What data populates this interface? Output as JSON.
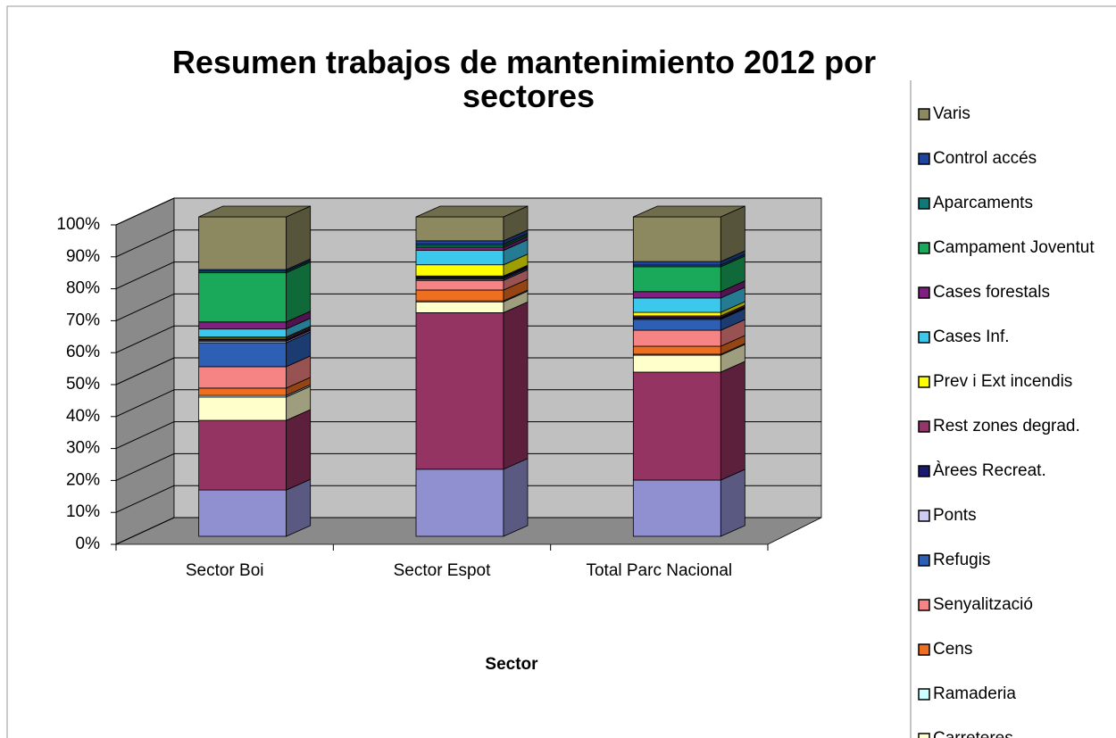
{
  "chart_data": {
    "type": "stacked_bar_3d",
    "title": "Resumen trabajos de mantenimiento 2012 por sectores",
    "x_label": "Sector",
    "categories": [
      "Sector Boi",
      "Sector Espot",
      "Total Parc Nacional"
    ],
    "ylim": [
      0,
      100
    ],
    "yticks": [
      {
        "value": 0,
        "label": "0%"
      },
      {
        "value": 10,
        "label": "10%"
      },
      {
        "value": 20,
        "label": "20%"
      },
      {
        "value": 30,
        "label": "30%"
      },
      {
        "value": 40,
        "label": "40%"
      },
      {
        "value": 50,
        "label": "50%"
      },
      {
        "value": 60,
        "label": "60%"
      },
      {
        "value": 70,
        "label": "70%"
      },
      {
        "value": 80,
        "label": "80%"
      },
      {
        "value": 90,
        "label": "90%"
      },
      {
        "value": 100,
        "label": "100%"
      }
    ],
    "grid": true,
    "legend": "right",
    "series": [
      {
        "color": "#9090d0",
        "values": [
          14.5,
          21,
          17.6
        ]
      },
      {
        "color": "#943462",
        "values": [
          21.8,
          49,
          33.8
        ]
      },
      {
        "name": "Carreteres",
        "color": "#ffffcc",
        "values": [
          7.3,
          3.4,
          5.3
        ]
      },
      {
        "name": "Ramaderia",
        "color": "#ccffff",
        "values": [
          0.5,
          0.3,
          0.3
        ]
      },
      {
        "name": "Cens",
        "color": "#ee6f1f",
        "values": [
          2.3,
          3.4,
          2.5
        ]
      },
      {
        "name": "Senyalització",
        "color": "#f78484",
        "values": [
          6.7,
          3,
          5
        ]
      },
      {
        "name": "Refugis",
        "color": "#2d5fb4",
        "values": [
          7.5,
          0.5,
          3.4
        ]
      },
      {
        "name": "Ponts",
        "color": "#ccccf5",
        "values": [
          0.5,
          0.3,
          0.3
        ]
      },
      {
        "name": "Àrees Recreat.",
        "color": "#1a1a70",
        "values": [
          0.5,
          0.3,
          0.3
        ]
      },
      {
        "name": "Rest zones degrad.",
        "color": "#93376a",
        "values": [
          0.5,
          0.3,
          0.5
        ]
      },
      {
        "name": "Prev i Ext incendis",
        "color": "#ffff00",
        "values": [
          0.3,
          3.5,
          1.1
        ]
      },
      {
        "name": "Cases Inf.",
        "color": "#3cc8ec",
        "values": [
          2.5,
          4.5,
          4.5
        ]
      },
      {
        "name": "Cases forestals",
        "color": "#7f1f80",
        "values": [
          2.2,
          1,
          2
        ]
      },
      {
        "name": "Campament Joventut",
        "color": "#1aa95a",
        "values": [
          15.4,
          0.5,
          7.8
        ]
      },
      {
        "name": "Aparcaments",
        "color": "#0f7878",
        "values": [
          0.5,
          0.5,
          0.5
        ]
      },
      {
        "name": "Control accés",
        "color": "#1f44a0",
        "values": [
          0.5,
          1,
          1.1
        ]
      },
      {
        "name": "Varis",
        "color": "#8c8860",
        "values": [
          16.5,
          7.5,
          14
        ]
      }
    ]
  }
}
